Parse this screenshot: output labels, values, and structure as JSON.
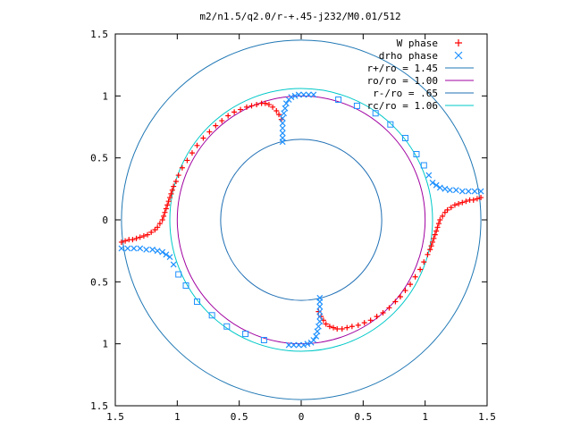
{
  "chart_data": {
    "type": "scatter",
    "title": "m2/n1.5/q2.0/r-+.45-j232/M0.01/512",
    "xlim": [
      -1.5,
      1.5
    ],
    "ylim": [
      -1.5,
      1.5
    ],
    "x_tick_labels": [
      "1.5",
      "1",
      "0.5",
      "0",
      "0.5",
      "1",
      "1.5"
    ],
    "y_tick_labels": [
      "1.5",
      "1",
      "0.5",
      "0",
      "0.5",
      "1",
      "1.5"
    ],
    "x_ticks": [
      -1.5,
      -1,
      -0.5,
      0,
      0.5,
      1,
      1.5
    ],
    "y_ticks": [
      -1.5,
      -1,
      -0.5,
      0,
      0.5,
      1,
      1.5
    ],
    "grid": false,
    "legend_position": "top-right",
    "series": [
      {
        "name": "W phase",
        "marker": "+",
        "color": "#ff0000",
        "kind": "points"
      },
      {
        "name": "drho phase",
        "marker": "x",
        "color": "#1e90ff",
        "kind": "points"
      },
      {
        "name": "r+/ro = 1.45",
        "color": "#1f77b4",
        "kind": "circle",
        "radius": 1.45
      },
      {
        "name": "ro/ro = 1.00",
        "color": "#a000a0",
        "kind": "circle",
        "radius": 1.0
      },
      {
        "name": "r-/ro = .65",
        "color": "#1f6fb4",
        "kind": "circle",
        "radius": 0.65
      },
      {
        "name": "rc/ro = 1.06",
        "color": "#00c8c8",
        "kind": "circle",
        "radius": 1.06
      }
    ],
    "W_phase_points": [
      [
        -1.45,
        -0.18
      ],
      [
        -1.42,
        -0.17
      ],
      [
        -1.39,
        -0.16
      ],
      [
        -1.36,
        -0.16
      ],
      [
        -1.33,
        -0.15
      ],
      [
        -1.3,
        -0.14
      ],
      [
        -1.27,
        -0.13
      ],
      [
        -1.24,
        -0.12
      ],
      [
        -1.21,
        -0.1
      ],
      [
        -1.18,
        -0.08
      ],
      [
        -1.16,
        -0.06
      ],
      [
        -1.14,
        -0.03
      ],
      [
        -1.12,
        0.0
      ],
      [
        -1.11,
        0.03
      ],
      [
        -1.1,
        0.06
      ],
      [
        -1.09,
        0.09
      ],
      [
        -1.08,
        0.12
      ],
      [
        -1.07,
        0.15
      ],
      [
        -1.06,
        0.18
      ],
      [
        -1.05,
        0.21
      ],
      [
        -1.04,
        0.24
      ],
      [
        -1.03,
        0.27
      ],
      [
        -1.01,
        0.31
      ],
      [
        -0.99,
        0.36
      ],
      [
        -0.96,
        0.42
      ],
      [
        -0.92,
        0.48
      ],
      [
        -0.88,
        0.54
      ],
      [
        -0.84,
        0.6
      ],
      [
        -0.79,
        0.66
      ],
      [
        -0.74,
        0.71
      ],
      [
        -0.69,
        0.76
      ],
      [
        -0.64,
        0.8
      ],
      [
        -0.59,
        0.84
      ],
      [
        -0.54,
        0.87
      ],
      [
        -0.49,
        0.89
      ],
      [
        -0.44,
        0.91
      ],
      [
        -0.4,
        0.92
      ],
      [
        -0.36,
        0.93
      ],
      [
        -0.32,
        0.94
      ],
      [
        -0.29,
        0.94
      ],
      [
        -0.26,
        0.93
      ],
      [
        -0.23,
        0.91
      ],
      [
        -0.2,
        0.88
      ],
      [
        -0.18,
        0.85
      ],
      [
        -0.16,
        0.81
      ],
      [
        1.45,
        0.18
      ],
      [
        1.42,
        0.17
      ],
      [
        1.39,
        0.16
      ],
      [
        1.36,
        0.16
      ],
      [
        1.33,
        0.15
      ],
      [
        1.3,
        0.14
      ],
      [
        1.27,
        0.13
      ],
      [
        1.24,
        0.12
      ],
      [
        1.21,
        0.1
      ],
      [
        1.18,
        0.08
      ],
      [
        1.16,
        0.06
      ],
      [
        1.14,
        0.03
      ],
      [
        1.12,
        0.0
      ],
      [
        1.11,
        -0.03
      ],
      [
        1.1,
        -0.06
      ],
      [
        1.09,
        -0.09
      ],
      [
        1.08,
        -0.12
      ],
      [
        1.07,
        -0.15
      ],
      [
        1.06,
        -0.18
      ],
      [
        1.05,
        -0.21
      ],
      [
        1.04,
        -0.24
      ],
      [
        1.02,
        -0.28
      ],
      [
        0.99,
        -0.34
      ],
      [
        0.96,
        -0.4
      ],
      [
        0.92,
        -0.46
      ],
      [
        0.88,
        -0.52
      ],
      [
        0.84,
        -0.57
      ],
      [
        0.8,
        -0.62
      ],
      [
        0.76,
        -0.66
      ],
      [
        0.71,
        -0.71
      ],
      [
        0.66,
        -0.75
      ],
      [
        0.61,
        -0.78
      ],
      [
        0.56,
        -0.81
      ],
      [
        0.51,
        -0.83
      ],
      [
        0.46,
        -0.85
      ],
      [
        0.41,
        -0.86
      ],
      [
        0.37,
        -0.87
      ],
      [
        0.33,
        -0.88
      ],
      [
        0.29,
        -0.88
      ],
      [
        0.26,
        -0.87
      ],
      [
        0.23,
        -0.86
      ],
      [
        0.2,
        -0.84
      ],
      [
        0.18,
        -0.81
      ],
      [
        0.16,
        -0.78
      ],
      [
        0.14,
        -0.74
      ]
    ],
    "drho_phase_points": [
      [
        -0.15,
        0.63
      ],
      [
        -0.15,
        0.66
      ],
      [
        -0.15,
        0.7
      ],
      [
        -0.15,
        0.74
      ],
      [
        -0.15,
        0.78
      ],
      [
        -0.15,
        0.82
      ],
      [
        -0.14,
        0.86
      ],
      [
        -0.13,
        0.9
      ],
      [
        -0.12,
        0.94
      ],
      [
        -0.1,
        0.97
      ],
      [
        -0.08,
        0.99
      ],
      [
        -0.05,
        1.0
      ],
      [
        -0.02,
        1.01
      ],
      [
        0.02,
        1.01
      ],
      [
        0.06,
        1.01
      ],
      [
        0.1,
        1.01
      ],
      [
        0.3,
        0.97
      ],
      [
        0.45,
        0.92
      ],
      [
        0.6,
        0.86
      ],
      [
        0.72,
        0.77
      ],
      [
        0.84,
        0.66
      ],
      [
        0.93,
        0.53
      ],
      [
        0.99,
        0.44
      ],
      [
        1.03,
        0.36
      ],
      [
        1.06,
        0.3
      ],
      [
        1.09,
        0.28
      ],
      [
        1.12,
        0.26
      ],
      [
        1.16,
        0.25
      ],
      [
        1.2,
        0.24
      ],
      [
        1.25,
        0.24
      ],
      [
        1.3,
        0.23
      ],
      [
        1.35,
        0.23
      ],
      [
        1.4,
        0.23
      ],
      [
        1.45,
        0.23
      ],
      [
        0.15,
        -0.63
      ],
      [
        0.15,
        -0.66
      ],
      [
        0.15,
        -0.7
      ],
      [
        0.15,
        -0.74
      ],
      [
        0.15,
        -0.78
      ],
      [
        0.15,
        -0.82
      ],
      [
        0.14,
        -0.86
      ],
      [
        0.13,
        -0.9
      ],
      [
        0.12,
        -0.94
      ],
      [
        0.1,
        -0.97
      ],
      [
        0.08,
        -0.99
      ],
      [
        0.05,
        -1.0
      ],
      [
        0.02,
        -1.01
      ],
      [
        -0.02,
        -1.01
      ],
      [
        -0.06,
        -1.01
      ],
      [
        -0.1,
        -1.01
      ],
      [
        -0.3,
        -0.97
      ],
      [
        -0.45,
        -0.92
      ],
      [
        -0.6,
        -0.86
      ],
      [
        -0.72,
        -0.77
      ],
      [
        -0.84,
        -0.66
      ],
      [
        -0.93,
        -0.53
      ],
      [
        -0.99,
        -0.44
      ],
      [
        -1.03,
        -0.36
      ],
      [
        -1.06,
        -0.3
      ],
      [
        -1.09,
        -0.28
      ],
      [
        -1.12,
        -0.26
      ],
      [
        -1.16,
        -0.25
      ],
      [
        -1.2,
        -0.24
      ],
      [
        -1.25,
        -0.24
      ],
      [
        -1.3,
        -0.23
      ],
      [
        -1.35,
        -0.23
      ],
      [
        -1.4,
        -0.23
      ],
      [
        -1.45,
        -0.23
      ]
    ]
  }
}
